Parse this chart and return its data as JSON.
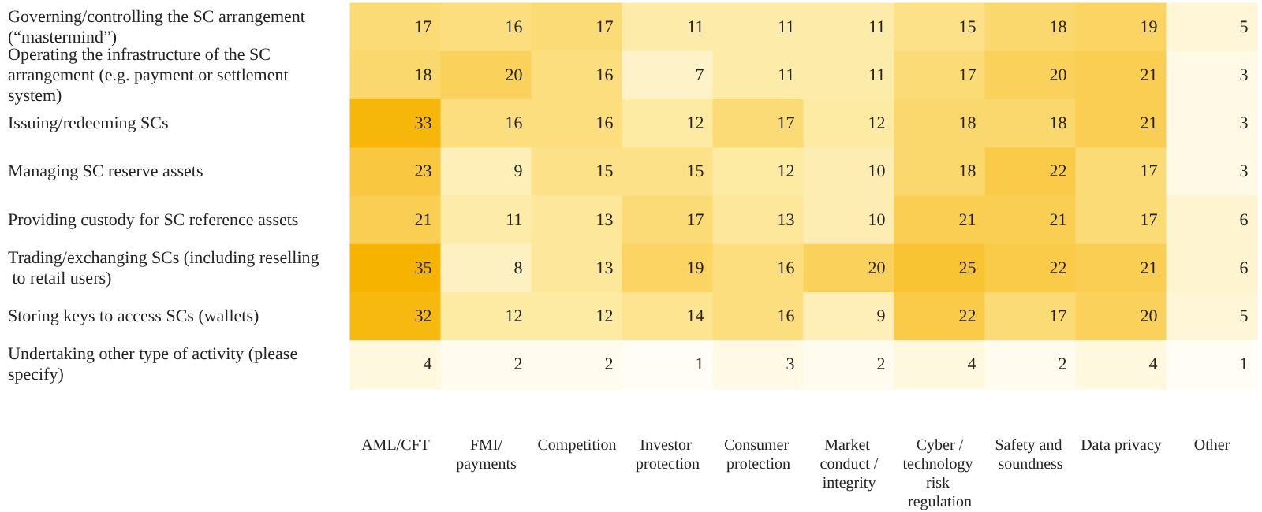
{
  "chart_data": {
    "type": "heatmap",
    "categories": [
      "AML/CFT",
      "FMI/payments",
      "Competition",
      "Investor protection",
      "Consumer protection",
      "Market conduct /integrity",
      "Cyber /technology risk regulation",
      "Safety and soundness",
      "Data privacy",
      "Other"
    ],
    "y_categories": [
      "Governing/controlling the SC arrangement (“mastermind”)",
      "Operating the infrastructure of the SC arrangement (e.g. payment or settlement system)",
      "Issuing/redeeming SCs",
      "Managing SC reserve assets",
      "Providing custody for SC reference assets",
      "Trading/exchanging SCs (including reselling to retail users)",
      "Storing keys to access SCs (wallets)",
      "Undertaking other type of activity (please specify)"
    ],
    "cells": [
      [
        17,
        16,
        17,
        11,
        11,
        11,
        15,
        18,
        19,
        5
      ],
      [
        18,
        20,
        16,
        7,
        11,
        11,
        17,
        20,
        21,
        3
      ],
      [
        33,
        16,
        16,
        12,
        17,
        12,
        18,
        18,
        21,
        3
      ],
      [
        23,
        9,
        15,
        15,
        12,
        10,
        18,
        22,
        17,
        3
      ],
      [
        21,
        11,
        13,
        17,
        13,
        10,
        21,
        21,
        17,
        6
      ],
      [
        35,
        8,
        13,
        19,
        16,
        20,
        25,
        22,
        21,
        6
      ],
      [
        32,
        12,
        12,
        14,
        16,
        9,
        22,
        17,
        20,
        5
      ],
      [
        4,
        2,
        2,
        1,
        3,
        2,
        4,
        2,
        4,
        1
      ]
    ],
    "data_labels": true
  }
}
